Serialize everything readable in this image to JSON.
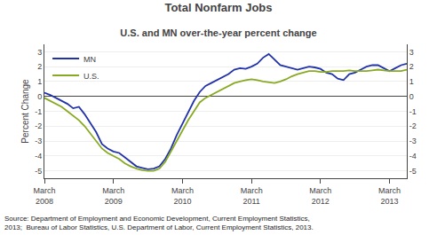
{
  "chart_data": {
    "type": "line",
    "title": "Total Nonfarm Jobs",
    "subtitle": "U.S. and MN over-the-year percent change",
    "ylabel": "Percent Change",
    "annotations": [
      "Source: Department of Employment and Economic Development, Current Employment Statistics,\n2013;  Bureau of Labor Statistics, U.S. Department of Labor, Current Employment Statistics, 2013."
    ],
    "categories": [
      "March\n2008",
      null,
      null,
      null,
      null,
      null,
      null,
      null,
      null,
      null,
      null,
      null,
      "March\n2009",
      null,
      null,
      null,
      null,
      null,
      null,
      null,
      null,
      null,
      null,
      null,
      "March\n2010",
      null,
      null,
      null,
      null,
      null,
      null,
      null,
      null,
      null,
      null,
      null,
      "March\n2011",
      null,
      null,
      null,
      null,
      null,
      null,
      null,
      null,
      null,
      null,
      null,
      "March\n2012",
      null,
      null,
      null,
      null,
      null,
      null,
      null,
      null,
      null,
      null,
      null,
      "March\n2013",
      null,
      null,
      null
    ],
    "series": [
      {
        "name": "MN",
        "color": "#2233aa",
        "values": [
          0.25,
          0.1,
          -0.1,
          -0.3,
          -0.5,
          -0.8,
          -0.7,
          -1.2,
          -1.8,
          -2.4,
          -3.2,
          -3.5,
          -3.7,
          -3.8,
          -4.1,
          -4.4,
          -4.7,
          -4.8,
          -4.9,
          -4.85,
          -4.7,
          -4.2,
          -3.5,
          -2.6,
          -1.8,
          -1.1,
          -0.3,
          0.3,
          0.7,
          0.9,
          1.1,
          1.3,
          1.5,
          1.8,
          1.9,
          1.85,
          2.0,
          2.2,
          2.6,
          2.85,
          2.5,
          2.1,
          2.0,
          1.9,
          1.8,
          1.9,
          2.0,
          1.95,
          1.85,
          1.6,
          1.5,
          1.2,
          1.1,
          1.5,
          1.6,
          1.8,
          2.0,
          2.1,
          2.1,
          1.9,
          1.7,
          1.9,
          2.1,
          2.2
        ]
      },
      {
        "name": "U.S.",
        "color": "#88aa22",
        "values": [
          -0.1,
          -0.3,
          -0.5,
          -0.7,
          -1.0,
          -1.3,
          -1.6,
          -2.0,
          -2.5,
          -3.0,
          -3.5,
          -3.8,
          -4.0,
          -4.2,
          -4.5,
          -4.7,
          -4.85,
          -4.95,
          -5.0,
          -5.0,
          -4.85,
          -4.4,
          -3.7,
          -3.0,
          -2.3,
          -1.6,
          -1.0,
          -0.4,
          -0.1,
          0.1,
          0.3,
          0.5,
          0.75,
          0.9,
          1.0,
          1.1,
          1.15,
          1.1,
          1.0,
          0.95,
          0.9,
          1.0,
          1.15,
          1.35,
          1.5,
          1.6,
          1.7,
          1.7,
          1.65,
          1.65,
          1.7,
          1.7,
          1.7,
          1.75,
          1.7,
          1.7,
          1.7,
          1.75,
          1.8,
          1.75,
          1.7,
          1.7,
          1.7,
          1.8
        ]
      }
    ],
    "ylim": [
      -5.5,
      3.5
    ],
    "yticks": [
      -5,
      -4,
      -3,
      -2,
      -1,
      0,
      1,
      2,
      3
    ],
    "y2lim": [
      -5.5,
      3.5
    ],
    "y2ticks": [
      -5,
      -4,
      -3,
      -2,
      -1,
      0,
      1,
      2,
      3
    ],
    "grid": true,
    "legend": "upper left"
  }
}
